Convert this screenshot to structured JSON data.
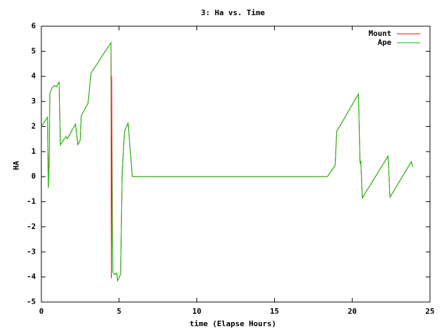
{
  "chart_data": {
    "type": "line",
    "title": "3: Ha vs. Time",
    "x_label": "time (Elapse Hours)",
    "y_label": "HA",
    "xlim": [
      0,
      25
    ],
    "xticks": [
      0,
      5,
      10,
      15,
      20,
      25
    ],
    "ylim": [
      -5,
      6
    ],
    "yticks": [
      -5,
      -4,
      -3,
      -2,
      -1,
      0,
      1,
      2,
      3,
      4,
      5,
      6
    ],
    "legend": "top-right",
    "series": [
      {
        "name": "Mount",
        "color": "#ff0000",
        "x": [
          0,
          0.4,
          0.45,
          0.5,
          0.55,
          0.7,
          0.85,
          0.97,
          1.15,
          1.22,
          1.58,
          1.68,
          2.2,
          2.35,
          2.5,
          2.57,
          3.0,
          3.2,
          3.75,
          3.95,
          4.48,
          4.5,
          4.52,
          4.55,
          4.6,
          4.7,
          4.85,
          4.9,
          5.1,
          5.2,
          5.35,
          5.58,
          5.85,
          18.4,
          18.9,
          19.0,
          20.4,
          20.5,
          20.55,
          20.65,
          22.3,
          22.43,
          23.8,
          23.9
        ],
        "values": [
          2.0,
          2.37,
          -0.44,
          0.5,
          3.33,
          3.55,
          3.63,
          3.58,
          3.77,
          1.27,
          1.6,
          1.52,
          2.1,
          1.27,
          1.46,
          2.43,
          2.92,
          4.13,
          4.65,
          4.85,
          5.34,
          -4.05,
          4.0,
          0.6,
          -3.8,
          -3.9,
          -3.85,
          -4.15,
          -3.9,
          0.2,
          1.8,
          2.15,
          0,
          0,
          0.45,
          1.8,
          3.3,
          0.55,
          0.6,
          -0.85,
          0.82,
          -0.82,
          0.6,
          0.38
        ]
      },
      {
        "name": "Ape",
        "color": "#00c000",
        "x": [
          0,
          0.4,
          0.45,
          0.5,
          0.55,
          0.7,
          0.85,
          0.97,
          1.15,
          1.22,
          1.58,
          1.68,
          2.2,
          2.35,
          2.5,
          2.57,
          3.0,
          3.2,
          3.75,
          3.95,
          4.48,
          4.52,
          4.6,
          4.7,
          4.85,
          4.9,
          5.1,
          5.2,
          5.35,
          5.58,
          5.85,
          18.4,
          18.9,
          19.0,
          20.4,
          20.5,
          20.55,
          20.65,
          22.3,
          22.43,
          23.8,
          23.9
        ],
        "values": [
          2.0,
          2.37,
          -0.44,
          0.5,
          3.33,
          3.55,
          3.63,
          3.58,
          3.77,
          1.27,
          1.6,
          1.52,
          2.1,
          1.27,
          1.46,
          2.43,
          2.92,
          4.13,
          4.65,
          4.85,
          5.34,
          0.6,
          -3.8,
          -3.9,
          -3.85,
          -4.15,
          -3.9,
          0.2,
          1.8,
          2.15,
          0,
          0,
          0.45,
          1.8,
          3.3,
          0.55,
          0.6,
          -0.85,
          0.82,
          -0.82,
          0.6,
          0.38
        ]
      }
    ]
  }
}
